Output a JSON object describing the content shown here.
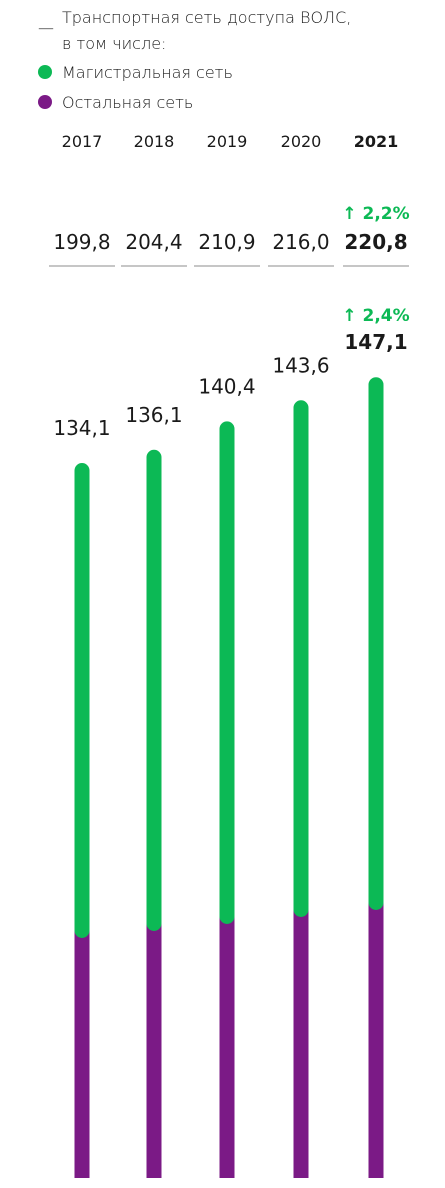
{
  "legend": {
    "dash": "—",
    "title_line1": "Транспортная сеть доступа ВОЛС,",
    "title_line2": "в том числе:",
    "items": [
      {
        "label": "Магистральная сеть",
        "color": "#0cb955"
      },
      {
        "label": "Остальная сеть",
        "color": "#7b1a86"
      }
    ]
  },
  "chart_data": {
    "type": "bar",
    "categories": [
      "2017",
      "2018",
      "2019",
      "2020",
      "2021"
    ],
    "highlight_category": "2021",
    "total": {
      "values": [
        "199,8",
        "204,4",
        "210,9",
        "216,0",
        "220,8"
      ],
      "change": "↑ 2,2%"
    },
    "series": [
      {
        "name": "Магистральная сеть",
        "values": [
          134.1,
          136.1,
          140.4,
          143.6,
          147.1
        ],
        "labels": [
          "134,1",
          "136,1",
          "140,4",
          "143,6",
          "147,1"
        ],
        "change": "↑ 2,4%",
        "color": "#0cb955"
      },
      {
        "name": "Остальная сеть",
        "values": [
          65.7,
          68.3,
          70.5,
          72.4,
          73.7
        ],
        "color": "#7b1a86"
      }
    ],
    "change_color": "#0cb955"
  }
}
